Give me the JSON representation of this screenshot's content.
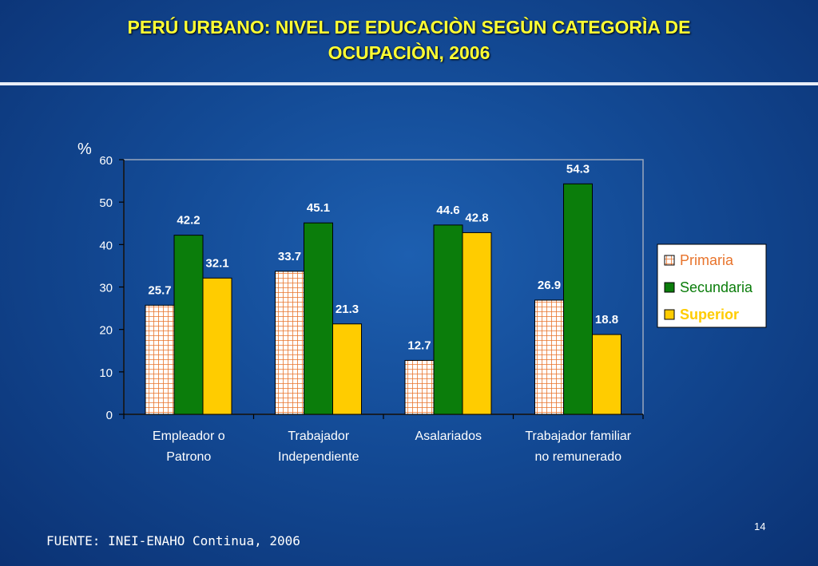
{
  "slide": {
    "title_line1": "PERÚ URBANO: NIVEL DE EDUCACIÒN SEGÙN CATEGORÌA DE",
    "title_line2": "OCUPACIÒN, 2006",
    "source": "FUENTE: INEI-ENAHO Continua, 2006",
    "page_number": "14"
  },
  "colors": {
    "primaria_fill": "#ffffff",
    "primaria_grid": "#e8742c",
    "secundaria": "#0b7d0b",
    "superior": "#ffcc00",
    "legend_superior_text": "#ffcc00",
    "legend_primaria_text": "#e8742c",
    "text": "#ffffff"
  },
  "chart_data": {
    "type": "bar",
    "title": "PERÚ URBANO: NIVEL DE EDUCACIÒN SEGÙN CATEGORÌA DE OCUPACIÒN, 2006",
    "ylabel": "%",
    "xlabel": "",
    "ylim": [
      0,
      60
    ],
    "yticks": [
      "0",
      "10",
      "20",
      "30",
      "40",
      "50",
      "60"
    ],
    "grid": false,
    "legend_position": "right",
    "categories": [
      [
        "Empleador o",
        "Patrono"
      ],
      [
        "Trabajador",
        "Independiente"
      ],
      [
        "Asalariados"
      ],
      [
        "Trabajador familiar",
        "no remunerado"
      ]
    ],
    "series": [
      {
        "name": "Primaria",
        "values": [
          25.7,
          33.7,
          12.7,
          26.9
        ],
        "labels": [
          "25.7",
          "33.7",
          "12.7",
          "26.9"
        ]
      },
      {
        "name": "Secundaria",
        "values": [
          42.2,
          45.1,
          44.6,
          54.3
        ],
        "labels": [
          "42.2",
          "45.1",
          "44.6",
          "54.3"
        ]
      },
      {
        "name": "Superior",
        "values": [
          32.1,
          21.3,
          42.8,
          18.8
        ],
        "labels": [
          "32.1",
          "21.3",
          "42.8",
          "18.8"
        ]
      }
    ]
  }
}
